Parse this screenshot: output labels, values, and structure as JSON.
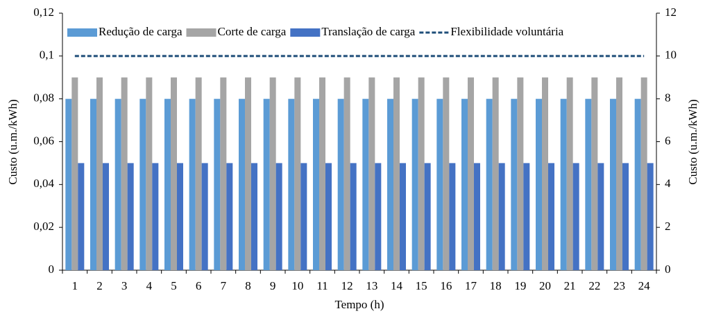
{
  "chart_data": {
    "type": "bar",
    "categories": [
      "1",
      "2",
      "3",
      "4",
      "5",
      "6",
      "7",
      "8",
      "9",
      "10",
      "11",
      "12",
      "13",
      "14",
      "15",
      "16",
      "17",
      "18",
      "19",
      "20",
      "21",
      "22",
      "23",
      "24"
    ],
    "series": [
      {
        "name": "Redução de carga",
        "color": "#5b9bd5",
        "values": [
          0.08,
          0.08,
          0.08,
          0.08,
          0.08,
          0.08,
          0.08,
          0.08,
          0.08,
          0.08,
          0.08,
          0.08,
          0.08,
          0.08,
          0.08,
          0.08,
          0.08,
          0.08,
          0.08,
          0.08,
          0.08,
          0.08,
          0.08,
          0.08
        ]
      },
      {
        "name": "Corte de carga",
        "color": "#a5a5a5",
        "values": [
          0.09,
          0.09,
          0.09,
          0.09,
          0.09,
          0.09,
          0.09,
          0.09,
          0.09,
          0.09,
          0.09,
          0.09,
          0.09,
          0.09,
          0.09,
          0.09,
          0.09,
          0.09,
          0.09,
          0.09,
          0.09,
          0.09,
          0.09,
          0.09
        ]
      },
      {
        "name": "Translação de carga",
        "color": "#4472c4",
        "values": [
          0.05,
          0.05,
          0.05,
          0.05,
          0.05,
          0.05,
          0.05,
          0.05,
          0.05,
          0.05,
          0.05,
          0.05,
          0.05,
          0.05,
          0.05,
          0.05,
          0.05,
          0.05,
          0.05,
          0.05,
          0.05,
          0.05,
          0.05,
          0.05
        ]
      },
      {
        "name": "Flexibilidade voluntária",
        "color": "#1f4e79",
        "type": "line",
        "axis": "y2",
        "dashed": true,
        "values": [
          10,
          10,
          10,
          10,
          10,
          10,
          10,
          10,
          10,
          10,
          10,
          10,
          10,
          10,
          10,
          10,
          10,
          10,
          10,
          10,
          10,
          10,
          10,
          10
        ]
      }
    ],
    "x_label": "Tempo (h)",
    "y_label": "Custo (u.m./kWh)",
    "y2_label": "Custo (u.m./kWh)",
    "ylim": [
      0,
      0.12
    ],
    "yticks": [
      0,
      {
        "value": 0.02,
        "label": "0,02"
      },
      {
        "value": 0.04,
        "label": "0,04"
      },
      {
        "value": 0.06,
        "label": "0,06"
      },
      {
        "value": 0.08,
        "label": "0,08"
      },
      {
        "value": 0.1,
        "label": "0,1"
      },
      {
        "value": 0.12,
        "label": "0,12"
      }
    ],
    "y2lim": [
      0,
      12
    ],
    "y2ticks": [
      0,
      2,
      4,
      6,
      8,
      10,
      12
    ],
    "grid": false,
    "legend": "top"
  }
}
